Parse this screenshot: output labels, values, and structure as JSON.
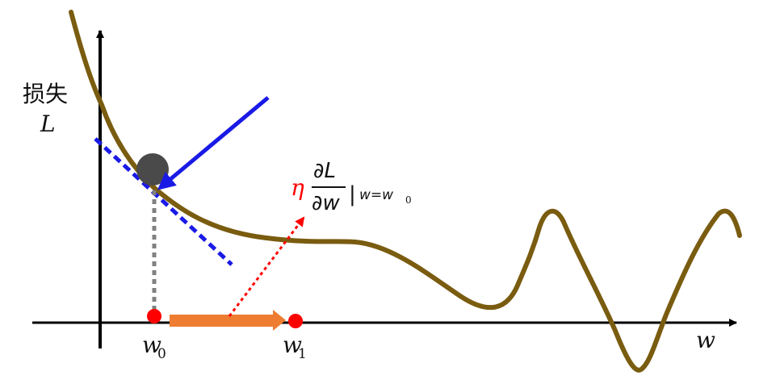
{
  "diagram": {
    "y_axis_label_cjk": "损失",
    "y_axis_label_var": "L",
    "x_axis_label": "w",
    "point_w0_base": "w",
    "point_w0_sub": "0",
    "point_w1_base": "w",
    "point_w1_sub": "1",
    "formula_eta": "η",
    "formula_numerator": "∂L",
    "formula_denominator": "∂w",
    "formula_eval_bar": "|",
    "formula_eval_prefix": "w=w",
    "formula_eval_sub": "0"
  },
  "colors": {
    "axis": "#000000",
    "curve": "#7a5c10",
    "tangent": "#1a1ae6",
    "arrow_blue": "#1a1ae6",
    "ball": "#4a4a4a",
    "dropline": "#808080",
    "point": "#ff0000",
    "step_arrow": "#ee7d31",
    "gradient_arrow": "#ff0000",
    "eta": "#ff0000"
  }
}
